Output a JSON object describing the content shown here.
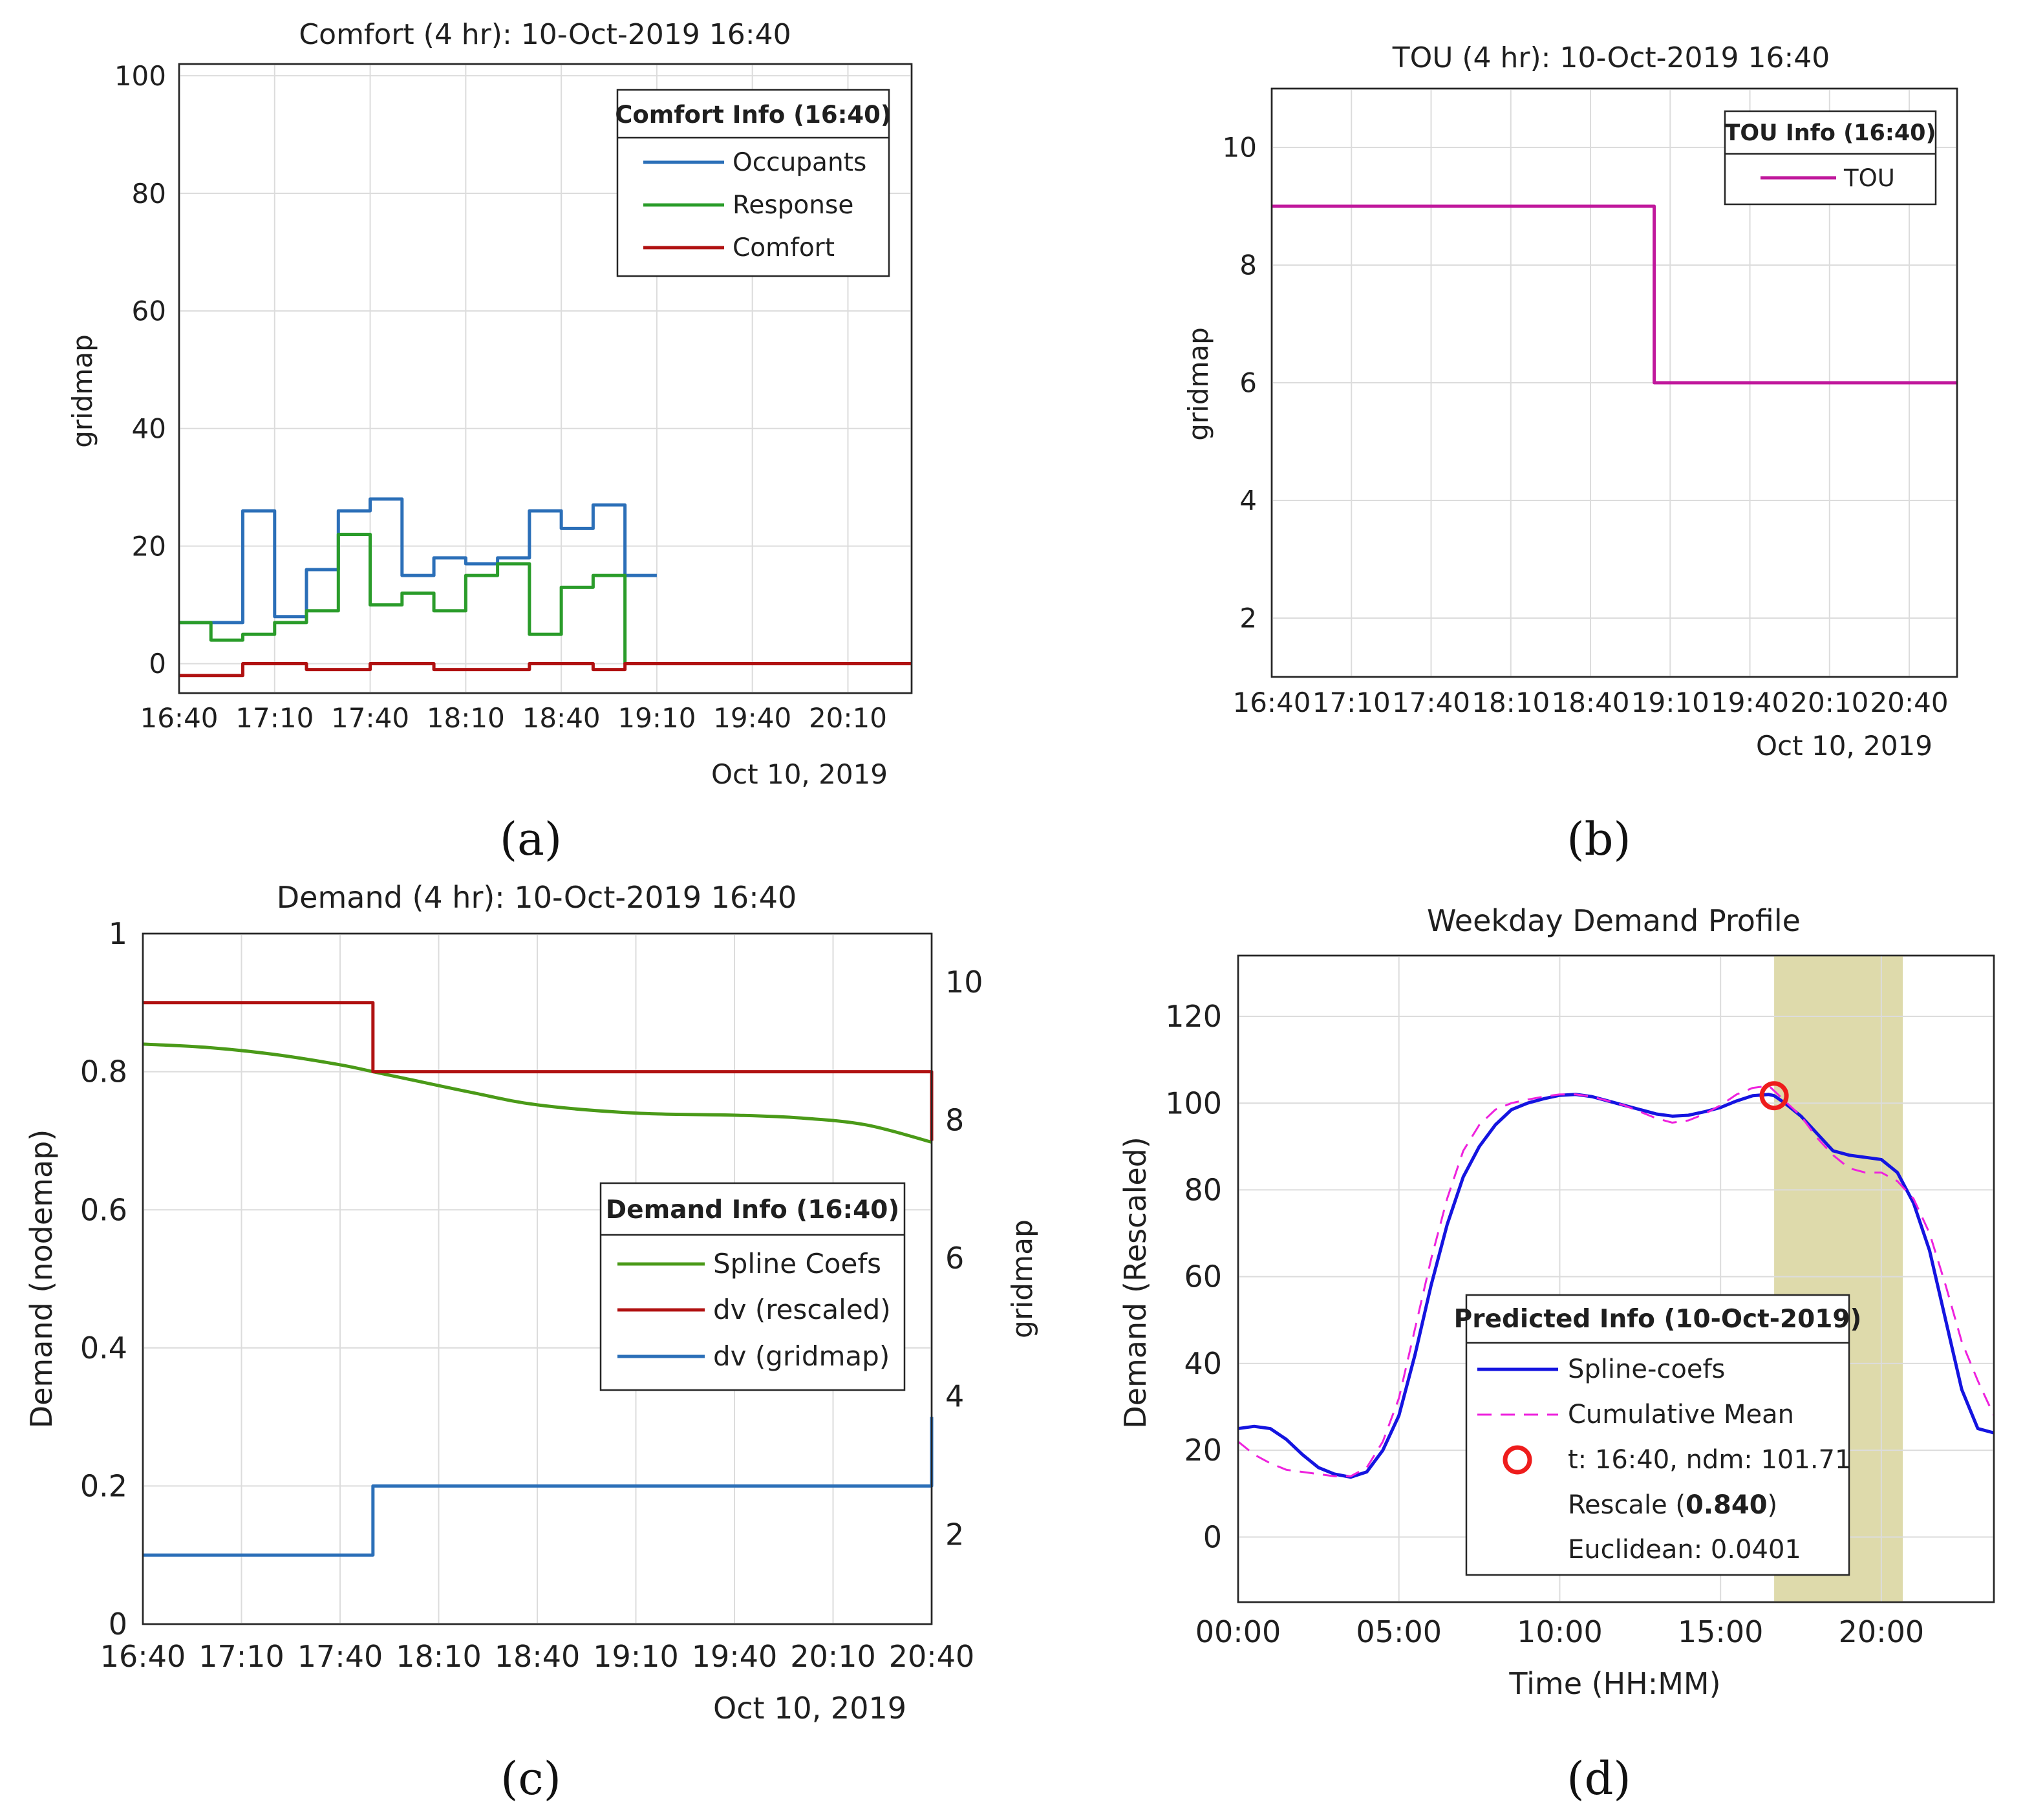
{
  "chart_data": [
    {
      "id": "a",
      "type": "line",
      "step": true,
      "caption_letter": "a",
      "title": "Comfort (4 hr): 10-Oct-2019 16:40",
      "ylabel": "gridmap",
      "xlabel": "",
      "date_label": "Oct 10, 2019",
      "xlim": [
        0,
        230
      ],
      "ylim": [
        -5,
        102
      ],
      "grid": true,
      "x_ticks": [
        0,
        30,
        60,
        90,
        120,
        150,
        180,
        210
      ],
      "x_tick_labels": [
        "16:40",
        "17:10",
        "17:40",
        "18:10",
        "18:40",
        "19:10",
        "19:40",
        "20:10"
      ],
      "y_ticks": [
        0,
        20,
        40,
        60,
        80,
        100
      ],
      "y_tick_labels": [
        "0",
        "20",
        "40",
        "60",
        "80",
        "100"
      ],
      "legend": {
        "title": "Comfort Info (16:40)",
        "placement": "top-right"
      },
      "series": [
        {
          "name": "Occupants",
          "color": "#2b6fb8",
          "width": 5,
          "x": [
            0,
            20,
            30,
            40,
            50,
            60,
            70,
            80,
            90,
            100,
            110,
            120,
            130,
            140,
            150
          ],
          "values": [
            7,
            26,
            8,
            16,
            26,
            28,
            15,
            18,
            17,
            18,
            26,
            23,
            27,
            15,
            15
          ]
        },
        {
          "name": "Response",
          "color": "#2a9c2a",
          "width": 5,
          "x": [
            0,
            10,
            20,
            30,
            40,
            50,
            60,
            70,
            80,
            90,
            100,
            110,
            120,
            130,
            140,
            150
          ],
          "values": [
            7,
            4,
            5,
            7,
            9,
            22,
            10,
            12,
            9,
            15,
            17,
            5,
            13,
            15,
            0,
            0
          ]
        },
        {
          "name": "Comfort",
          "color": "#b01111",
          "width": 5,
          "x": [
            0,
            20,
            40,
            50,
            60,
            70,
            80,
            100,
            110,
            130,
            140,
            230
          ],
          "values": [
            -2,
            0,
            -1,
            -1,
            0,
            0,
            -1,
            -1,
            0,
            -1,
            0,
            0
          ]
        }
      ]
    },
    {
      "id": "b",
      "type": "line",
      "step": true,
      "caption_letter": "b",
      "title": "TOU (4 hr): 10-Oct-2019 16:40",
      "ylabel": "gridmap",
      "xlabel": "",
      "date_label": "Oct 10, 2019",
      "xlim": [
        0,
        258
      ],
      "ylim": [
        1,
        11
      ],
      "grid": true,
      "x_ticks": [
        0,
        30,
        60,
        90,
        120,
        150,
        180,
        210,
        240
      ],
      "x_tick_labels": [
        "16:40",
        "17:10",
        "17:40",
        "18:10",
        "18:40",
        "19:10",
        "19:40",
        "20:10",
        "20:40"
      ],
      "y_ticks": [
        2,
        4,
        6,
        8,
        10
      ],
      "y_tick_labels": [
        "2",
        "4",
        "6",
        "8",
        "10"
      ],
      "legend": {
        "title": "TOU Info (16:40)",
        "placement": "top-right"
      },
      "series": [
        {
          "name": "TOU",
          "color": "#c0189c",
          "width": 5,
          "x": [
            0,
            144,
            144,
            258
          ],
          "values": [
            9,
            9,
            6,
            6
          ]
        }
      ]
    },
    {
      "id": "c",
      "type": "line",
      "step": true,
      "caption_letter": "c",
      "title": "Demand (4 hr): 10-Oct-2019 16:40",
      "ylabel": "Demand (nodemap)",
      "y2label": "gridmap",
      "xlabel": "",
      "date_label": "Oct 10, 2019",
      "xlim": [
        0,
        240
      ],
      "ylim": [
        0,
        1
      ],
      "y2lim": [
        0.7,
        10.7
      ],
      "grid": true,
      "x_ticks": [
        0,
        30,
        60,
        90,
        120,
        150,
        180,
        210,
        240
      ],
      "x_tick_labels": [
        "16:40",
        "17:10",
        "17:40",
        "18:10",
        "18:40",
        "19:10",
        "19:40",
        "20:10",
        "20:40"
      ],
      "y_ticks": [
        0,
        0.2,
        0.4,
        0.6,
        0.8,
        1
      ],
      "y_tick_labels": [
        "0",
        "0.2",
        "0.4",
        "0.6",
        "0.8",
        "1"
      ],
      "y2_ticks": [
        2,
        4,
        6,
        8,
        10
      ],
      "y2_tick_labels": [
        "2",
        "4",
        "6",
        "8",
        "10"
      ],
      "legend": {
        "title": "Demand Info (16:40)",
        "placement": "center-right"
      },
      "series": [
        {
          "name": "Spline Coefs",
          "color": "#4a9a18",
          "width": 5,
          "smooth": true,
          "x": [
            0,
            20,
            40,
            60,
            70,
            80,
            100,
            120,
            150,
            180,
            200,
            220,
            240
          ],
          "values": [
            0.84,
            0.835,
            0.825,
            0.81,
            0.8,
            0.79,
            0.77,
            0.752,
            0.74,
            0.737,
            0.733,
            0.723,
            0.698
          ]
        },
        {
          "name": "dv (rescaled)",
          "color": "#b01111",
          "width": 5,
          "x": [
            0,
            70,
            70,
            240,
            240
          ],
          "values": [
            0.9,
            0.9,
            0.8,
            0.8,
            0.7
          ]
        },
        {
          "name": "dv (gridmap)",
          "color": "#2b6fb8",
          "width": 5,
          "x": [
            0,
            70,
            70,
            240,
            240
          ],
          "values": [
            0.1,
            0.1,
            0.2,
            0.2,
            0.3
          ]
        }
      ]
    },
    {
      "id": "d",
      "type": "line",
      "caption_letter": "d",
      "title": "Weekday Demand Profile",
      "xlabel": "Time (HH:MM)",
      "ylabel": "Demand (Rescaled)",
      "xlim": [
        0,
        23.5
      ],
      "ylim": [
        -15,
        134
      ],
      "grid": true,
      "x_ticks": [
        0,
        5,
        10,
        15,
        20
      ],
      "x_tick_labels": [
        "00:00",
        "05:00",
        "10:00",
        "15:00",
        "20:00"
      ],
      "y_ticks": [
        0,
        20,
        40,
        60,
        80,
        100,
        120
      ],
      "y_tick_labels": [
        "0",
        "20",
        "40",
        "60",
        "80",
        "100",
        "120"
      ],
      "highlight_range": [
        16.667,
        20.667
      ],
      "highlight_color": "#d8d49c",
      "legend": {
        "title": "Predicted Info (10-Oct-2019)",
        "placement": "bottom-center",
        "entries": [
          {
            "text": "Spline-coefs",
            "style": "line"
          },
          {
            "text": "Cumulative Mean",
            "style": "dashed"
          },
          {
            "text": "t: 16:40, ndm: 101.71",
            "style": "marker"
          },
          {
            "text_parts": [
              "Rescale (",
              "0.840",
              ")"
            ],
            "style": "none"
          },
          {
            "text": "Euclidean: 0.0401",
            "style": "none"
          }
        ]
      },
      "marker": {
        "x": 16.667,
        "y": 101.71,
        "color": "#ee1c1c"
      },
      "series": [
        {
          "name": "Spline-coefs",
          "color": "#1414e0",
          "width": 5,
          "dash": "",
          "x": [
            0,
            0.5,
            1,
            1.5,
            2,
            2.5,
            3,
            3.5,
            4,
            4.5,
            5,
            5.5,
            6,
            6.5,
            7,
            7.5,
            8,
            8.5,
            9,
            9.5,
            10,
            10.5,
            11,
            11.5,
            12,
            12.5,
            13,
            13.5,
            14,
            14.5,
            15,
            15.5,
            16,
            16.5,
            16.667,
            17,
            17.5,
            18,
            18.5,
            19,
            19.5,
            20,
            20.5,
            21,
            21.5,
            22,
            22.5,
            23,
            23.5
          ],
          "values": [
            25,
            25.5,
            25,
            22.5,
            19,
            16,
            14.5,
            13.8,
            15,
            20,
            28,
            42,
            58,
            72,
            83,
            90,
            95,
            98.5,
            100,
            101,
            101.8,
            102,
            101.5,
            100.5,
            99.5,
            98.5,
            97.5,
            97,
            97.2,
            98,
            99,
            100.5,
            101.7,
            102,
            101.71,
            100,
            97,
            93,
            89,
            88,
            87.5,
            87,
            84,
            77,
            66,
            50,
            34,
            25,
            24
          ]
        },
        {
          "name": "Cumulative Mean",
          "color": "#ee22dd",
          "width": 3,
          "dash": "22 14",
          "x": [
            0,
            0.5,
            1,
            1.5,
            2,
            2.5,
            3,
            3.5,
            4,
            4.5,
            5,
            5.5,
            6,
            6.5,
            7,
            7.5,
            8,
            8.5,
            9,
            9.5,
            10,
            10.5,
            11,
            11.5,
            12,
            12.5,
            13,
            13.5,
            14,
            14.5,
            15,
            15.5,
            16,
            16.5,
            17,
            17.5,
            18,
            18.5,
            19,
            19.5,
            20,
            20.5,
            21,
            21.5,
            22,
            22.5,
            23,
            23.5
          ],
          "values": [
            22,
            19,
            17,
            15.5,
            15,
            14.5,
            14,
            14,
            16,
            22,
            32,
            48,
            64,
            78,
            89,
            95,
            98.5,
            100,
            100.8,
            101.5,
            102,
            102,
            101.5,
            100.5,
            99.5,
            98,
            96.5,
            95.5,
            96,
            97.5,
            99.5,
            102,
            103.5,
            104,
            100.5,
            97,
            92,
            88,
            85,
            84,
            84,
            82,
            78,
            70,
            58,
            45,
            36,
            28
          ]
        }
      ]
    }
  ]
}
